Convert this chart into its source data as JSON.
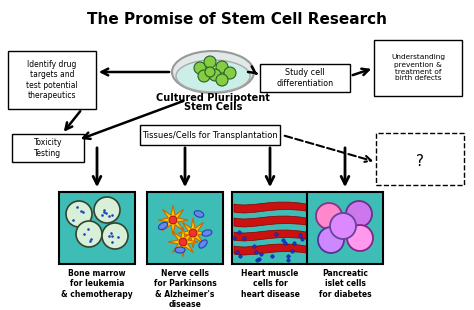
{
  "title": "The Promise of Stem Cell Research",
  "title_fontsize": 11,
  "title_fontweight": "bold",
  "bg_color": "#ffffff",
  "center_label1": "Cultured Pluripotent",
  "center_label2": "Stem Cells",
  "transplant_label": "Tissues/Cells for Transplantation",
  "box_left_top": "Identify drug\ntargets and\ntest potential\ntherapeutics",
  "box_left_mid": "Toxicity\nTesting",
  "box_right_top": "Study cell\ndifferentiation",
  "box_right_far": "Understanding\nprevention &\ntreatment of\nbirth defects",
  "cell_labels": [
    "Bone marrow\nfor leukemia\n& chemotherapy",
    "Nerve cells\nfor Parkinsons\n& Alzheimer's\ndisease",
    "Heart muscle\ncells for\nheart disease",
    "Pancreatic\nislet cells\nfor diabetes"
  ],
  "question_mark": "?",
  "teal_color": "#3dbdb5",
  "arrow_color": "#000000",
  "petri_outer_color": "#cccccc",
  "petri_inner_color": "#e0f0ee",
  "cell_green_fill": "#e8ffe8",
  "cell_green_edge": "#336633"
}
